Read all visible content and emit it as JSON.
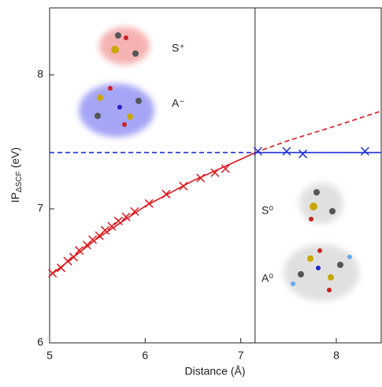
{
  "chart_data": {
    "type": "line",
    "xlabel": "Distance (Å)",
    "ylabel": {
      "main": "IP",
      "sub": "ΔSCF",
      "unit": "(eV)"
    },
    "xlim": [
      5,
      8.47
    ],
    "ylim": [
      6,
      8.5
    ],
    "xticks": [
      5,
      6,
      7,
      8
    ],
    "yticks": [
      6,
      7,
      8
    ],
    "vline": 7.15,
    "annotations": [
      "S⁺",
      "A⁻",
      "S⁰",
      "A⁰"
    ],
    "series": [
      {
        "mode": "markers",
        "color": "#e0161b",
        "x": [
          5.03,
          5.12,
          5.19,
          5.25,
          5.31,
          5.39,
          5.45,
          5.52,
          5.58,
          5.65,
          5.72,
          5.8,
          5.89,
          6.04,
          6.22,
          6.4,
          6.58,
          6.73,
          6.84
        ],
        "values": [
          6.52,
          6.56,
          6.61,
          6.64,
          6.69,
          6.73,
          6.77,
          6.8,
          6.84,
          6.87,
          6.91,
          6.94,
          6.98,
          7.04,
          7.11,
          7.17,
          7.23,
          7.27,
          7.3
        ]
      },
      {
        "mode": "line",
        "dash": false,
        "color": "#e0161b",
        "x": [
          5,
          5.5,
          6,
          6.5,
          7,
          7.15
        ],
        "values": [
          6.5,
          6.78,
          7.02,
          7.21,
          7.37,
          7.42
        ]
      },
      {
        "mode": "line",
        "dash": true,
        "color": "#e0161b",
        "x": [
          7.15,
          7.5,
          8,
          8.47
        ],
        "values": [
          7.42,
          7.51,
          7.62,
          7.73
        ]
      },
      {
        "mode": "line",
        "dash": true,
        "color": "#1c2fd6",
        "x": [
          5,
          7.15
        ],
        "values": [
          7.42,
          7.42
        ]
      },
      {
        "mode": "line",
        "dash": false,
        "color": "#1c2fd6",
        "x": [
          7.15,
          8.47
        ],
        "values": [
          7.42,
          7.42
        ]
      },
      {
        "mode": "markers",
        "color": "#1c2fd6",
        "x": [
          7.18,
          7.48,
          7.65,
          8.3
        ],
        "values": [
          7.43,
          7.43,
          7.41,
          7.43
        ]
      }
    ]
  }
}
